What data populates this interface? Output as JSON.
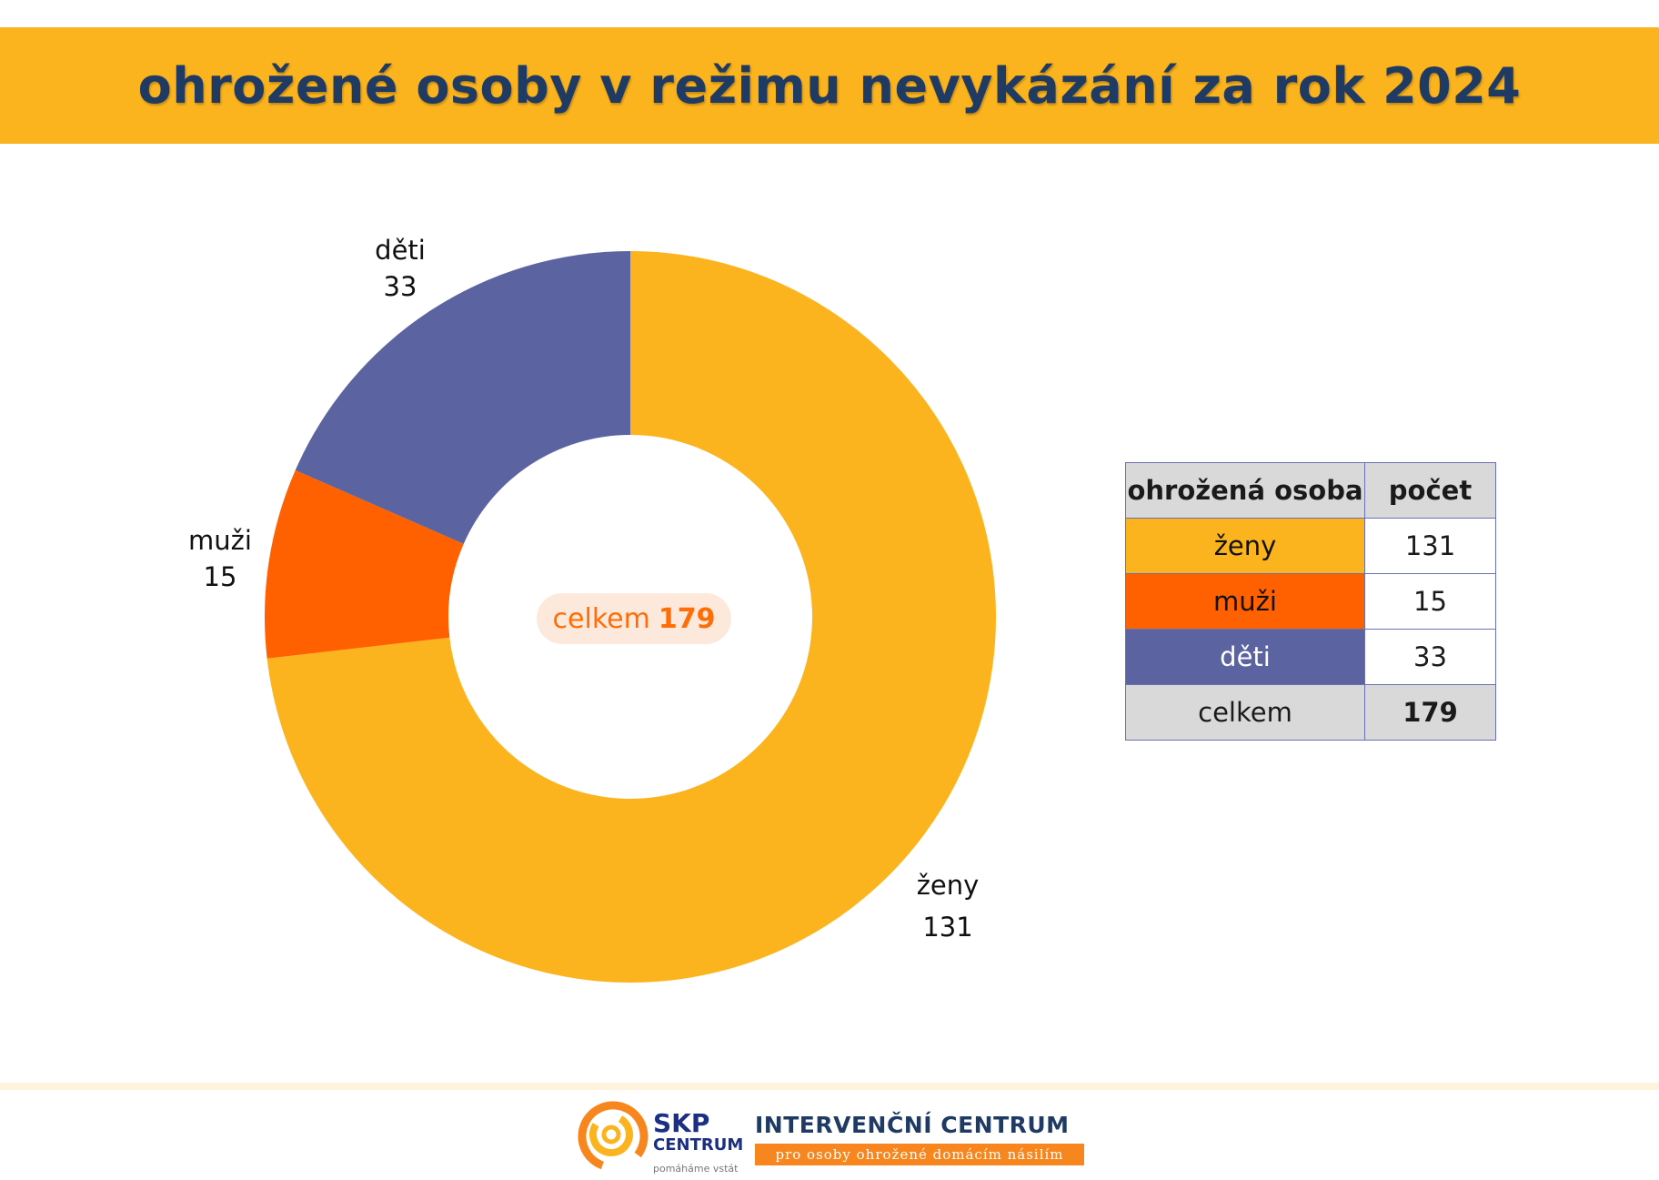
{
  "header": {
    "title": "ohrožené osoby v režimu nevykázání za rok 2024"
  },
  "chart_data": {
    "type": "pie",
    "title": "ohrožené osoby v režimu nevykázání za rok 2024",
    "categories": [
      "ženy",
      "muži",
      "děti"
    ],
    "values": [
      131,
      15,
      33
    ],
    "colors": [
      "#fbb41e",
      "#ff6000",
      "#5b64a0"
    ],
    "donut": true,
    "total_label": "celkem",
    "total": 179
  },
  "table": {
    "headers": [
      "ohrožená osoba",
      "počet"
    ],
    "rows": [
      {
        "label": "ženy",
        "count": "131",
        "color": "#fbb41e",
        "text_color": "#111111"
      },
      {
        "label": "muži",
        "count": "15",
        "color": "#ff6000",
        "text_color": "#111111"
      },
      {
        "label": "děti",
        "count": "33",
        "color": "#5b64a0",
        "text_color": "#ffffff"
      }
    ],
    "total": {
      "label": "celkem",
      "count": "179"
    }
  },
  "footer": {
    "skp_line1": "SKP",
    "skp_line2": "CENTRUM",
    "skp_tagline": "pomáháme vstát",
    "ic_title": "INTERVENČNÍ CENTRUM",
    "ic_subtitle": "pro osoby ohrožené domácím násilím"
  }
}
